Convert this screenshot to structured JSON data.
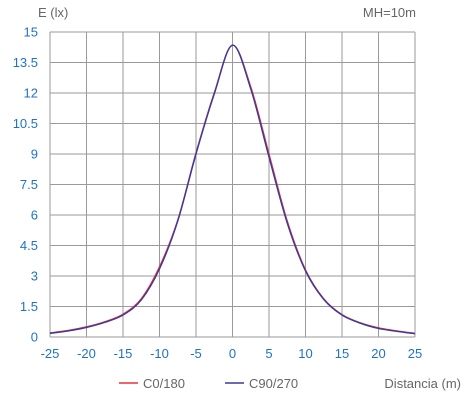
{
  "chart_data": {
    "type": "line",
    "ylabel": "E (lx)",
    "xlabel": "Distancia (m)",
    "annotation": "MH=10m",
    "xlim": [
      -25,
      25
    ],
    "ylim": [
      0,
      15
    ],
    "x_ticks": [
      -25,
      -20,
      -15,
      -10,
      -5,
      0,
      5,
      10,
      15,
      20,
      25
    ],
    "y_ticks": [
      0,
      1.5,
      3,
      4.5,
      6,
      7.5,
      9,
      10.5,
      12,
      13.5,
      15
    ],
    "y_tick_labels": [
      "0",
      "1.5",
      "3",
      "4.5",
      "6",
      "7.5",
      "9",
      "10.5",
      "12",
      "13.5",
      "15"
    ],
    "grid": true,
    "legend_placement": "bottom",
    "series": [
      {
        "name": "C0/180",
        "color": "#e8323c",
        "x": [
          -25,
          -22.5,
          -20,
          -17.5,
          -15,
          -12.5,
          -10,
          -7.5,
          -5,
          -2.5,
          0,
          2.5,
          5,
          7.5,
          10,
          12.5,
          15,
          17.5,
          20,
          22.5,
          25
        ],
        "y": [
          0.2,
          0.32,
          0.5,
          0.75,
          1.12,
          1.88,
          3.45,
          5.75,
          9.05,
          12.0,
          14.35,
          12.3,
          9.0,
          5.7,
          3.3,
          1.88,
          1.1,
          0.7,
          0.45,
          0.3,
          0.18
        ]
      },
      {
        "name": "C90/270",
        "color": "#3a3a9a",
        "x": [
          -25,
          -22.5,
          -20,
          -17.5,
          -15,
          -12.5,
          -10,
          -7.5,
          -5,
          -2.5,
          0,
          2.5,
          5,
          7.5,
          10,
          12.5,
          15,
          17.5,
          20,
          22.5,
          25
        ],
        "y": [
          0.18,
          0.3,
          0.47,
          0.72,
          1.08,
          1.82,
          3.35,
          5.7,
          9.0,
          11.95,
          14.35,
          12.2,
          8.85,
          5.6,
          3.25,
          1.85,
          1.08,
          0.68,
          0.42,
          0.28,
          0.16
        ]
      }
    ]
  }
}
